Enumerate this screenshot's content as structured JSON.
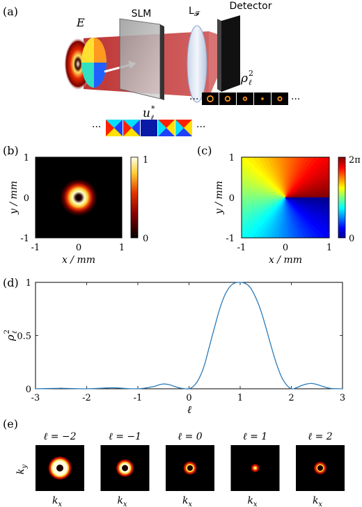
{
  "panel_a": {
    "label": "(a)",
    "field_label": "E",
    "slm_label": "SLM",
    "lens_label": "L",
    "lens_sub": "𝓕",
    "detector_label": "Detector",
    "rho_label": "ρ",
    "rho_sub": "ℓ",
    "rho_sup": "2",
    "u_label": "u",
    "u_sub": "ℓ",
    "u_sup": "*",
    "ellipsis": "···"
  },
  "panel_b": {
    "label": "(b)",
    "xlabel": "x / mm",
    "ylabel": "y / mm",
    "xticks": [
      "-1",
      "0",
      "1"
    ],
    "yticks": [
      "1",
      "0",
      "-1"
    ],
    "colorbar_ticks": [
      "1",
      "0"
    ]
  },
  "panel_c": {
    "label": "(c)",
    "xlabel": "x / mm",
    "ylabel": "y / mm",
    "xticks": [
      "-1",
      "0",
      "1"
    ],
    "yticks": [
      "1",
      "0",
      "-1"
    ],
    "colorbar_ticks": [
      "2π",
      "0"
    ]
  },
  "panel_e": {
    "label": "(e)",
    "ylabel": "k",
    "ylabel_sub": "y",
    "xlabel": "k",
    "xlabel_sub": "x",
    "images": [
      {
        "title": "ℓ = −2"
      },
      {
        "title": "ℓ = −1"
      },
      {
        "title": "ℓ = 0"
      },
      {
        "title": "ℓ = 1"
      },
      {
        "title": "ℓ = 2"
      }
    ]
  },
  "chart_data": {
    "label": "(d)",
    "type": "line",
    "xlabel": "ℓ",
    "ylabel": "ρ",
    "ylabel_sub": "ℓ",
    "ylabel_sup": "2",
    "xlim": [
      -3,
      3
    ],
    "ylim": [
      0,
      1
    ],
    "xticks": [
      "-3",
      "-2",
      "-1",
      "0",
      "1",
      "2",
      "3"
    ],
    "yticks": [
      "1",
      "0.5",
      "0"
    ],
    "grid": false,
    "series": [
      {
        "color": "#2a7ab8",
        "x": [
          -3.0,
          -2.6,
          -2.5,
          -2.4,
          -2.0,
          -1.6,
          -1.5,
          -1.4,
          -1.0,
          -0.7,
          -0.6,
          -0.5,
          -0.4,
          -0.3,
          -0.2,
          -0.1,
          0.0,
          0.1,
          0.2,
          0.3,
          0.4,
          0.5,
          0.6,
          0.7,
          0.8,
          0.9,
          1.0,
          1.1,
          1.2,
          1.3,
          1.4,
          1.5,
          1.6,
          1.7,
          1.8,
          1.9,
          2.0,
          2.1,
          2.2,
          2.3,
          2.4,
          2.5,
          2.6,
          2.7,
          2.8,
          3.0
        ],
        "y": [
          0.0,
          0.004,
          0.005,
          0.004,
          0.0,
          0.008,
          0.01,
          0.008,
          0.0,
          0.02,
          0.035,
          0.045,
          0.04,
          0.025,
          0.01,
          0.002,
          0.0,
          0.03,
          0.1,
          0.22,
          0.4,
          0.58,
          0.75,
          0.88,
          0.96,
          0.995,
          1.0,
          0.99,
          0.95,
          0.86,
          0.74,
          0.58,
          0.41,
          0.25,
          0.12,
          0.04,
          0.0,
          0.01,
          0.03,
          0.045,
          0.05,
          0.04,
          0.025,
          0.01,
          0.002,
          0.0
        ]
      }
    ]
  }
}
